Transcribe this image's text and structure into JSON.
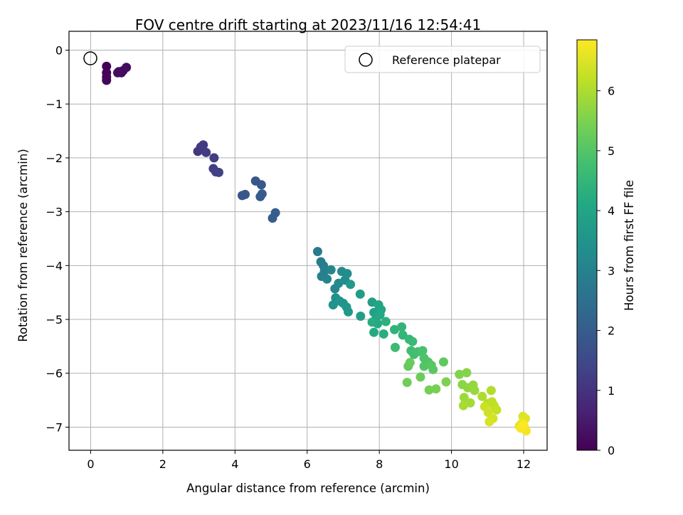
{
  "chart_data": {
    "type": "scatter",
    "title": "FOV centre drift starting at 2023/11/16 12:54:41",
    "xlabel": "Angular distance from reference (arcmin)",
    "ylabel": "Rotation from reference (arcmin)",
    "xlim": [
      -0.6,
      12.65
    ],
    "ylim": [
      -7.43,
      0.35
    ],
    "xticks": [
      0,
      2,
      4,
      6,
      8,
      10,
      12
    ],
    "yticks": [
      0,
      -1,
      -2,
      -3,
      -4,
      -5,
      -6,
      -7
    ],
    "grid": true,
    "legend": {
      "position": "top-right",
      "entries": [
        "Reference platepar"
      ]
    },
    "reference_point": {
      "x": 0,
      "y": 0
    },
    "colorbar": {
      "label": "Hours from first FF file",
      "range": [
        0,
        6.85
      ],
      "ticks": [
        0,
        1,
        2,
        3,
        4,
        5,
        6
      ],
      "colormap": "viridis"
    },
    "points": [
      [
        0.44,
        -0.3,
        0.0
      ],
      [
        0.44,
        -0.42,
        0.03
      ],
      [
        0.44,
        -0.5,
        0.06
      ],
      [
        0.44,
        -0.56,
        0.09
      ],
      [
        0.78,
        -0.4,
        0.12
      ],
      [
        0.85,
        -0.42,
        0.15
      ],
      [
        0.9,
        -0.38,
        0.18
      ],
      [
        0.99,
        -0.32,
        0.21
      ],
      [
        0.75,
        -0.42,
        0.24
      ],
      [
        2.97,
        -1.88,
        1.1
      ],
      [
        3.05,
        -1.8,
        1.13
      ],
      [
        3.12,
        -1.76,
        1.16
      ],
      [
        3.2,
        -1.9,
        1.19
      ],
      [
        3.42,
        -2.0,
        1.22
      ],
      [
        3.4,
        -2.2,
        1.25
      ],
      [
        3.47,
        -2.26,
        1.28
      ],
      [
        3.55,
        -2.27,
        1.31
      ],
      [
        4.2,
        -2.7,
        1.8
      ],
      [
        4.28,
        -2.68,
        1.83
      ],
      [
        4.57,
        -2.43,
        1.86
      ],
      [
        4.73,
        -2.5,
        1.89
      ],
      [
        4.7,
        -2.72,
        1.92
      ],
      [
        4.75,
        -2.67,
        1.95
      ],
      [
        5.04,
        -3.12,
        2.0
      ],
      [
        5.12,
        -3.02,
        2.03
      ],
      [
        6.29,
        -3.74,
        2.8
      ],
      [
        6.38,
        -3.93,
        2.85
      ],
      [
        6.45,
        -4.0,
        2.9
      ],
      [
        6.48,
        -4.1,
        2.95
      ],
      [
        6.4,
        -4.2,
        3.0
      ],
      [
        6.55,
        -4.25,
        3.05
      ],
      [
        6.66,
        -4.08,
        3.1
      ],
      [
        6.77,
        -4.43,
        3.15
      ],
      [
        6.87,
        -4.33,
        3.2
      ],
      [
        6.96,
        -4.11,
        3.25
      ],
      [
        7.05,
        -4.27,
        3.3
      ],
      [
        7.11,
        -4.15,
        3.35
      ],
      [
        6.79,
        -4.6,
        3.4
      ],
      [
        6.72,
        -4.73,
        3.45
      ],
      [
        6.9,
        -4.66,
        3.5
      ],
      [
        7.0,
        -4.7,
        3.55
      ],
      [
        7.09,
        -4.77,
        3.6
      ],
      [
        7.14,
        -4.86,
        3.65
      ],
      [
        7.2,
        -4.35,
        3.7
      ],
      [
        7.47,
        -4.53,
        3.75
      ],
      [
        7.48,
        -4.94,
        3.8
      ],
      [
        7.8,
        -4.68,
        3.85
      ],
      [
        7.85,
        -4.87,
        3.9
      ],
      [
        7.9,
        -5.0,
        3.95
      ],
      [
        7.98,
        -4.73,
        4.0
      ],
      [
        8.05,
        -4.82,
        4.05
      ],
      [
        8.02,
        -4.91,
        4.1
      ],
      [
        7.95,
        -5.08,
        4.15
      ],
      [
        7.85,
        -5.24,
        4.2
      ],
      [
        7.8,
        -5.05,
        4.25
      ],
      [
        8.12,
        -5.27,
        4.3
      ],
      [
        8.18,
        -5.04,
        4.35
      ],
      [
        8.42,
        -5.19,
        4.4
      ],
      [
        8.62,
        -5.14,
        4.45
      ],
      [
        8.65,
        -5.29,
        4.5
      ],
      [
        8.83,
        -5.37,
        4.55
      ],
      [
        8.92,
        -5.41,
        4.6
      ],
      [
        8.44,
        -5.52,
        4.65
      ],
      [
        8.88,
        -5.58,
        4.7
      ],
      [
        8.96,
        -5.65,
        4.75
      ],
      [
        9.07,
        -5.6,
        4.8
      ],
      [
        9.2,
        -5.58,
        4.85
      ],
      [
        9.24,
        -5.72,
        4.9
      ],
      [
        9.35,
        -5.79,
        4.95
      ],
      [
        9.24,
        -5.87,
        5.0
      ],
      [
        9.44,
        -5.85,
        5.05
      ],
      [
        9.49,
        -5.93,
        5.1
      ],
      [
        9.78,
        -5.79,
        5.15
      ],
      [
        8.8,
        -5.87,
        5.2
      ],
      [
        8.85,
        -5.8,
        5.25
      ],
      [
        9.14,
        -6.07,
        5.3
      ],
      [
        8.77,
        -6.17,
        5.35
      ],
      [
        9.38,
        -6.31,
        5.4
      ],
      [
        9.57,
        -6.29,
        5.45
      ],
      [
        9.85,
        -6.16,
        5.5
      ],
      [
        10.22,
        -6.02,
        5.55
      ],
      [
        10.42,
        -5.99,
        5.6
      ],
      [
        10.3,
        -6.21,
        5.65
      ],
      [
        10.45,
        -6.27,
        5.7
      ],
      [
        10.6,
        -6.22,
        5.75
      ],
      [
        10.64,
        -6.32,
        5.8
      ],
      [
        10.35,
        -6.45,
        5.85
      ],
      [
        10.52,
        -6.55,
        5.9
      ],
      [
        10.33,
        -6.6,
        5.95
      ],
      [
        10.85,
        -6.43,
        6.0
      ],
      [
        11.1,
        -6.32,
        6.05
      ],
      [
        11.0,
        -6.56,
        6.1
      ],
      [
        11.12,
        -6.53,
        6.15
      ],
      [
        11.18,
        -6.6,
        6.2
      ],
      [
        11.25,
        -6.68,
        6.25
      ],
      [
        10.92,
        -6.62,
        6.3
      ],
      [
        11.02,
        -6.73,
        6.35
      ],
      [
        11.15,
        -6.84,
        6.4
      ],
      [
        11.05,
        -6.9,
        6.45
      ],
      [
        11.98,
        -6.8,
        6.5
      ],
      [
        12.05,
        -6.84,
        6.55
      ],
      [
        11.88,
        -6.98,
        6.6
      ],
      [
        11.95,
        -6.93,
        6.65
      ],
      [
        12.02,
        -7.0,
        6.7
      ],
      [
        12.07,
        -7.07,
        6.75
      ],
      [
        11.92,
        -7.02,
        6.8
      ],
      [
        12.0,
        -6.96,
        6.83
      ]
    ]
  }
}
